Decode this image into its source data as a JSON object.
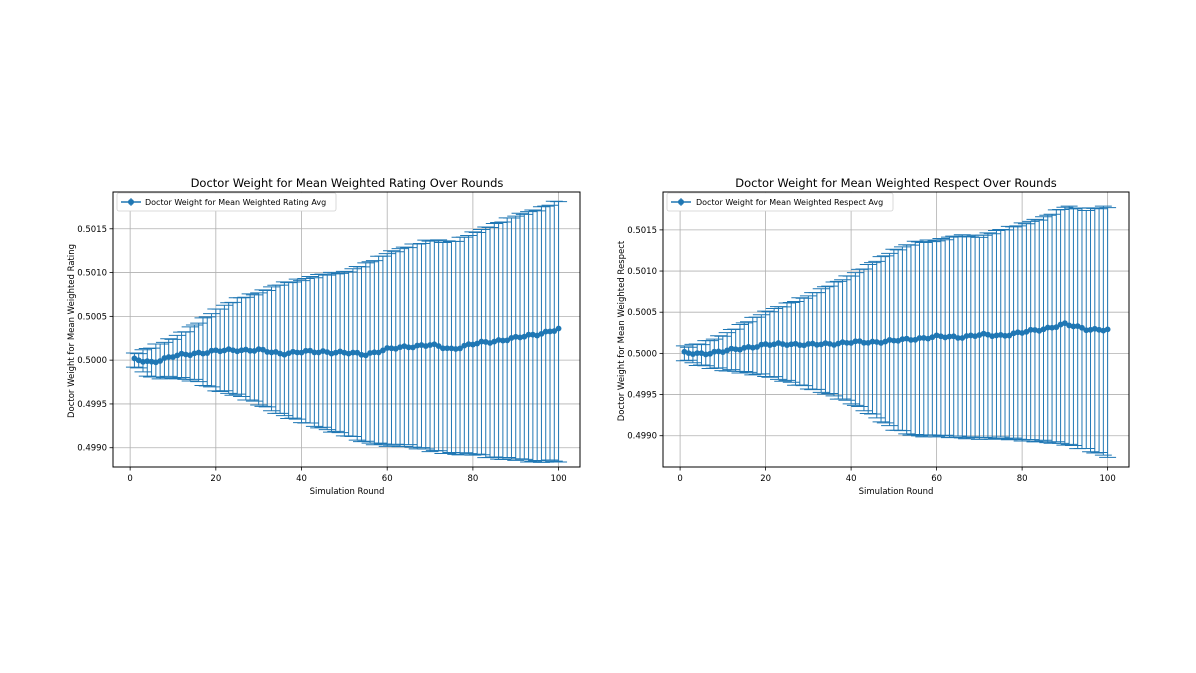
{
  "colors": {
    "series": "#1f77b4",
    "grid": "#b0b0b0",
    "axis": "#000000"
  },
  "chart_data": [
    {
      "type": "line",
      "title": "Doctor Weight for Mean Weighted Rating Over Rounds",
      "xlabel": "Simulation Round",
      "ylabel": "Doctor Weight for Mean Weighted Rating",
      "legend": {
        "label": "Doctor Weight for Mean Weighted Rating Avg",
        "position": "upper-left"
      },
      "grid": true,
      "xlim": [
        -4,
        105
      ],
      "ylim": [
        0.49878,
        0.50192
      ],
      "xticks": [
        0,
        20,
        40,
        60,
        80,
        100
      ],
      "xtick_labels": [
        "0",
        "20",
        "40",
        "60",
        "80",
        "100"
      ],
      "yticks": [
        0.499,
        0.4995,
        0.5,
        0.5005,
        0.501,
        0.5015
      ],
      "ytick_labels": [
        "0.4990",
        "0.4995",
        "0.5000",
        "0.5005",
        "0.5010",
        "0.5015"
      ],
      "series_shape": {
        "x_start": 1,
        "x_end": 100,
        "capsize_rounds": 0.9,
        "mean_points": [
          [
            1,
            0.5
          ],
          [
            5,
            0.49998
          ],
          [
            10,
            0.50004
          ],
          [
            15,
            0.50008
          ],
          [
            20,
            0.5001
          ],
          [
            25,
            0.50012
          ],
          [
            30,
            0.50011
          ],
          [
            35,
            0.50008
          ],
          [
            40,
            0.50009
          ],
          [
            45,
            0.5001
          ],
          [
            50,
            0.50008
          ],
          [
            55,
            0.50007
          ],
          [
            60,
            0.50012
          ],
          [
            65,
            0.50016
          ],
          [
            70,
            0.50017
          ],
          [
            75,
            0.50013
          ],
          [
            80,
            0.50018
          ],
          [
            85,
            0.50022
          ],
          [
            90,
            0.50025
          ],
          [
            95,
            0.5003
          ],
          [
            100,
            0.50035
          ]
        ],
        "upper_points": [
          [
            1,
            0.50007
          ],
          [
            5,
            0.50015
          ],
          [
            10,
            0.50025
          ],
          [
            15,
            0.5004
          ],
          [
            20,
            0.50057
          ],
          [
            25,
            0.5007
          ],
          [
            30,
            0.50077
          ],
          [
            35,
            0.50087
          ],
          [
            40,
            0.50092
          ],
          [
            45,
            0.50098
          ],
          [
            50,
            0.501
          ],
          [
            55,
            0.5011
          ],
          [
            60,
            0.50122
          ],
          [
            65,
            0.5013
          ],
          [
            70,
            0.50137
          ],
          [
            75,
            0.50135
          ],
          [
            80,
            0.50145
          ],
          [
            85,
            0.50155
          ],
          [
            90,
            0.50165
          ],
          [
            95,
            0.50172
          ],
          [
            100,
            0.50182
          ]
        ],
        "lower_points": [
          [
            1,
            0.49993
          ],
          [
            5,
            0.4998
          ],
          [
            10,
            0.4998
          ],
          [
            15,
            0.49977
          ],
          [
            20,
            0.49966
          ],
          [
            25,
            0.4996
          ],
          [
            30,
            0.4995
          ],
          [
            35,
            0.49938
          ],
          [
            40,
            0.4993
          ],
          [
            45,
            0.49922
          ],
          [
            50,
            0.49915
          ],
          [
            55,
            0.49906
          ],
          [
            60,
            0.49903
          ],
          [
            65,
            0.49902
          ],
          [
            70,
            0.49897
          ],
          [
            75,
            0.49893
          ],
          [
            80,
            0.49893
          ],
          [
            85,
            0.49888
          ],
          [
            90,
            0.49887
          ],
          [
            95,
            0.49884
          ],
          [
            100,
            0.49885
          ]
        ]
      }
    },
    {
      "type": "line",
      "title": "Doctor Weight for Mean Weighted Respect Over Rounds",
      "xlabel": "Simulation Round",
      "ylabel": "Doctor Weight for Mean Weighted Respect",
      "legend": {
        "label": "Doctor Weight for Mean Weighted Respect Avg",
        "position": "upper-left"
      },
      "grid": true,
      "xlim": [
        -4,
        105
      ],
      "ylim": [
        0.49862,
        0.50196
      ],
      "xticks": [
        0,
        20,
        40,
        60,
        80,
        100
      ],
      "xtick_labels": [
        "0",
        "20",
        "40",
        "60",
        "80",
        "100"
      ],
      "yticks": [
        0.499,
        0.4995,
        0.5,
        0.5005,
        0.501,
        0.5015
      ],
      "ytick_labels": [
        "0.4990",
        "0.4995",
        "0.5000",
        "0.5005",
        "0.5010",
        "0.5015"
      ],
      "series_shape": {
        "x_start": 1,
        "x_end": 100,
        "capsize_rounds": 0.9,
        "mean_points": [
          [
            1,
            0.5
          ],
          [
            5,
            0.5
          ],
          [
            10,
            0.50002
          ],
          [
            15,
            0.50007
          ],
          [
            20,
            0.5001
          ],
          [
            25,
            0.50012
          ],
          [
            30,
            0.5001
          ],
          [
            35,
            0.50012
          ],
          [
            40,
            0.50013
          ],
          [
            45,
            0.50014
          ],
          [
            50,
            0.50015
          ],
          [
            55,
            0.50018
          ],
          [
            60,
            0.5002
          ],
          [
            65,
            0.5002
          ],
          [
            70,
            0.50022
          ],
          [
            75,
            0.50022
          ],
          [
            80,
            0.50025
          ],
          [
            85,
            0.5003
          ],
          [
            90,
            0.50035
          ],
          [
            95,
            0.5003
          ],
          [
            100,
            0.50028
          ]
        ],
        "upper_points": [
          [
            1,
            0.50008
          ],
          [
            5,
            0.50012
          ],
          [
            10,
            0.50022
          ],
          [
            15,
            0.50037
          ],
          [
            20,
            0.5005
          ],
          [
            25,
            0.5006
          ],
          [
            30,
            0.5007
          ],
          [
            35,
            0.50083
          ],
          [
            40,
            0.50095
          ],
          [
            45,
            0.5011
          ],
          [
            50,
            0.50125
          ],
          [
            55,
            0.50135
          ],
          [
            60,
            0.50137
          ],
          [
            65,
            0.50143
          ],
          [
            70,
            0.50142
          ],
          [
            75,
            0.5015
          ],
          [
            80,
            0.50157
          ],
          [
            85,
            0.50165
          ],
          [
            90,
            0.50178
          ],
          [
            95,
            0.50175
          ],
          [
            100,
            0.50178
          ]
        ],
        "lower_points": [
          [
            1,
            0.49992
          ],
          [
            5,
            0.49985
          ],
          [
            10,
            0.4998
          ],
          [
            15,
            0.49977
          ],
          [
            20,
            0.49973
          ],
          [
            25,
            0.49966
          ],
          [
            30,
            0.49958
          ],
          [
            35,
            0.4995
          ],
          [
            40,
            0.4994
          ],
          [
            45,
            0.49925
          ],
          [
            50,
            0.49908
          ],
          [
            55,
            0.499
          ],
          [
            60,
            0.499
          ],
          [
            65,
            0.49898
          ],
          [
            70,
            0.49897
          ],
          [
            75,
            0.49897
          ],
          [
            80,
            0.49895
          ],
          [
            85,
            0.49893
          ],
          [
            90,
            0.4989
          ],
          [
            95,
            0.49883
          ],
          [
            100,
            0.49875
          ]
        ]
      }
    }
  ]
}
